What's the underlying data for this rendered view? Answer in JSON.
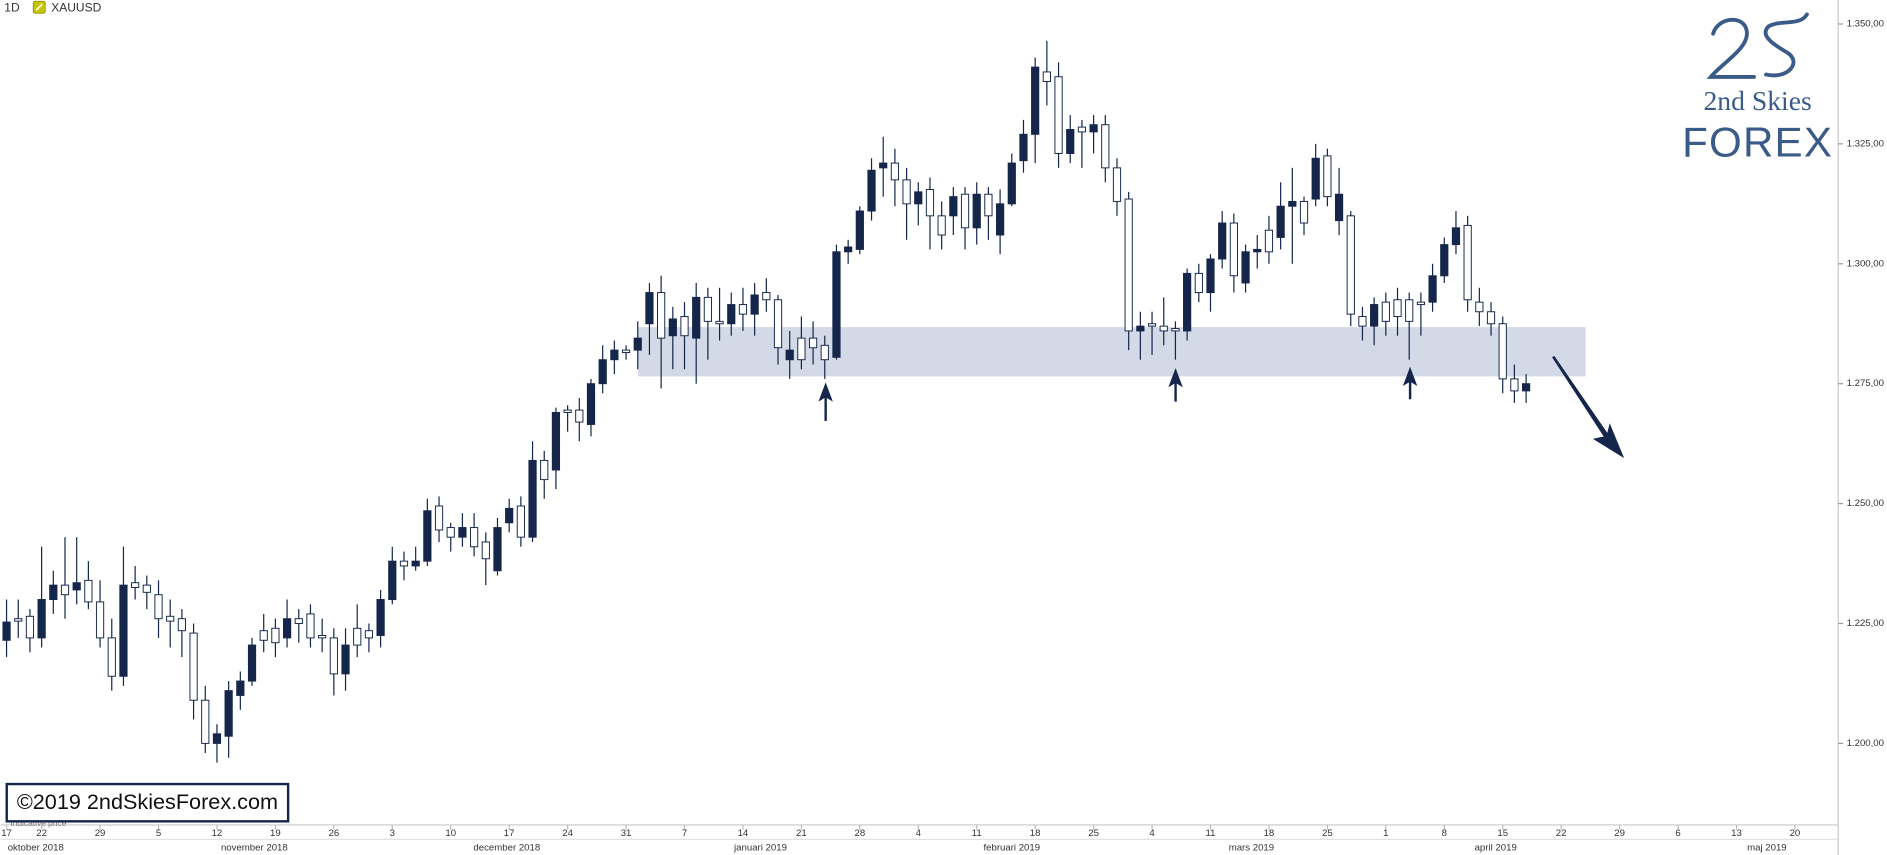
{
  "chart_data": {
    "type": "candlestick",
    "interval": "1D",
    "symbol": "XAUUSD",
    "brand_line1": "2nd Skies",
    "brand_line2": "FOREX",
    "copyright": "©2019 2ndSkiesForex.com",
    "footer_note": "Indicative price",
    "up_color": "#15264a",
    "down_color": "#ffffff",
    "ylim": [
      1183,
      1355
    ],
    "yticks": [
      {
        "value": 1200,
        "label": "1.200,00"
      },
      {
        "value": 1225,
        "label": "1.225,00"
      },
      {
        "value": 1250,
        "label": "1.250,00"
      },
      {
        "value": 1275,
        "label": "1.275,00"
      },
      {
        "value": 1300,
        "label": "1.300,00"
      },
      {
        "value": 1325,
        "label": "1.325,00"
      },
      {
        "value": 1350,
        "label": "1.350,00"
      }
    ],
    "xlim": [
      -3.5,
      153.7
    ],
    "xticks": [
      {
        "value": -3,
        "label": "17"
      },
      {
        "value": 0,
        "label": "22"
      },
      {
        "value": 5,
        "label": "29"
      },
      {
        "value": 10,
        "label": "5"
      },
      {
        "value": 15,
        "label": "12"
      },
      {
        "value": 20,
        "label": "19"
      },
      {
        "value": 25,
        "label": "26"
      },
      {
        "value": 30,
        "label": "3"
      },
      {
        "value": 35,
        "label": "10"
      },
      {
        "value": 40,
        "label": "17"
      },
      {
        "value": 45,
        "label": "24"
      },
      {
        "value": 50,
        "label": "31"
      },
      {
        "value": 55,
        "label": "7"
      },
      {
        "value": 60,
        "label": "14"
      },
      {
        "value": 65,
        "label": "21"
      },
      {
        "value": 70,
        "label": "28"
      },
      {
        "value": 75,
        "label": "4"
      },
      {
        "value": 80,
        "label": "11"
      },
      {
        "value": 85,
        "label": "18"
      },
      {
        "value": 90,
        "label": "25"
      },
      {
        "value": 95,
        "label": "4"
      },
      {
        "value": 100,
        "label": "11"
      },
      {
        "value": 105,
        "label": "18"
      },
      {
        "value": 110,
        "label": "25"
      },
      {
        "value": 115,
        "label": "1"
      },
      {
        "value": 120,
        "label": "8"
      },
      {
        "value": 125,
        "label": "15"
      },
      {
        "value": 130,
        "label": "22"
      },
      {
        "value": 135,
        "label": "29"
      },
      {
        "value": 140,
        "label": "6"
      },
      {
        "value": 145,
        "label": "13"
      },
      {
        "value": 150,
        "label": "20"
      }
    ],
    "month_labels": [
      {
        "value": -0.5,
        "label": "oktober 2018"
      },
      {
        "value": 18.2,
        "label": "november 2018"
      },
      {
        "value": 39.8,
        "label": "december 2018"
      },
      {
        "value": 61.5,
        "label": "januari 2019"
      },
      {
        "value": 83,
        "label": "februari 2019"
      },
      {
        "value": 103.5,
        "label": "mars 2019"
      },
      {
        "value": 124.4,
        "label": "april 2019"
      },
      {
        "value": 147.6,
        "label": "maj 2019"
      }
    ],
    "x": [
      -3,
      -2,
      -1,
      0,
      1,
      2,
      3,
      4,
      5,
      6,
      7,
      8,
      9,
      10,
      11,
      12,
      13,
      14,
      15,
      16,
      17,
      18,
      19,
      20,
      21,
      22,
      23,
      24,
      25,
      26,
      27,
      28,
      29,
      30,
      31,
      32,
      33,
      34,
      35,
      36,
      37,
      38,
      39,
      40,
      41,
      42,
      43,
      44,
      45,
      46,
      47,
      48,
      49,
      50,
      51,
      52,
      53,
      54,
      55,
      56,
      57,
      58,
      59,
      60,
      61,
      62,
      63,
      64,
      65,
      66,
      67,
      68,
      69,
      70,
      71,
      72,
      73,
      74,
      75,
      76,
      77,
      78,
      79,
      80,
      81,
      82,
      83,
      84,
      85,
      86,
      87,
      88,
      89,
      90,
      91,
      92,
      93,
      94,
      95,
      96,
      97,
      98,
      99,
      100,
      101,
      102,
      103,
      104,
      105,
      106,
      107,
      108,
      109,
      110,
      111,
      112,
      113,
      114,
      115,
      116,
      117,
      118,
      119,
      120,
      121,
      122,
      123,
      124,
      125,
      126,
      127
    ],
    "open": [
      1221.5,
      1226,
      1226.5,
      1222,
      1230,
      1233,
      1232,
      1234,
      1229.5,
      1222,
      1214,
      1233.5,
      1233,
      1231,
      1226.5,
      1226,
      1223,
      1209,
      1200,
      1201.5,
      1210,
      1213,
      1223.5,
      1224,
      1222,
      1226,
      1227,
      1222.5,
      1222,
      1214.5,
      1224,
      1223.5,
      1222.5,
      1230,
      1238,
      1237,
      1238,
      1249.5,
      1245,
      1243,
      1245,
      1242,
      1236,
      1246,
      1249.5,
      1243,
      1259,
      1257,
      1269.5,
      1269.5,
      1266.5,
      1275,
      1280,
      1282,
      1282,
      1287.5,
      1294,
      1285,
      1289,
      1284.5,
      1293,
      1288,
      1287.5,
      1291.5,
      1289.5,
      1294,
      1292.5,
      1280,
      1284.5,
      1284.5,
      1283,
      1280.5,
      1302.5,
      1303,
      1311,
      1320,
      1321,
      1317.5,
      1312.5,
      1315.5,
      1310,
      1310,
      1314.5,
      1307.5,
      1314.5,
      1306,
      1312.5,
      1321.5,
      1327,
      1340,
      1339,
      1323,
      1328.5,
      1327.5,
      1329,
      1320,
      1313.5,
      1286,
      1287.5,
      1287,
      1286.5,
      1286,
      1298,
      1294,
      1301,
      1308.5,
      1296,
      1302.5,
      1307,
      1305.5,
      1312,
      1313,
      1313.5,
      1322.5,
      1309,
      1310,
      1289,
      1287,
      1292,
      1292.5,
      1292.5,
      1292,
      1292,
      1297.5,
      1304,
      1308,
      1292,
      1290,
      1287.5,
      1276,
      1273.5
    ],
    "high": [
      1230,
      1230,
      1228,
      1241,
      1236,
      1243,
      1243,
      1238,
      1234,
      1226,
      1241,
      1237,
      1235,
      1234,
      1230,
      1228,
      1225,
      1212,
      1204,
      1213,
      1215,
      1222,
      1227,
      1226,
      1230,
      1228,
      1229,
      1226,
      1224,
      1224,
      1229,
      1225,
      1232,
      1241,
      1240,
      1241,
      1251,
      1251.5,
      1246,
      1248,
      1248,
      1244,
      1247,
      1251,
      1251.5,
      1263,
      1261,
      1270,
      1270.5,
      1272,
      1276,
      1283,
      1284,
      1283,
      1288,
      1296,
      1297.5,
      1291,
      1292,
      1296,
      1295,
      1295,
      1294,
      1295,
      1296,
      1297,
      1293.5,
      1286,
      1289,
      1288,
      1285,
      1304,
      1305,
      1312,
      1322,
      1326.5,
      1324,
      1320,
      1317,
      1318,
      1313,
      1316,
      1316,
      1317,
      1316,
      1315.5,
      1323,
      1330,
      1343,
      1346.5,
      1342,
      1331,
      1330,
      1331,
      1331,
      1322,
      1315,
      1290,
      1290,
      1293,
      1288,
      1299,
      1300,
      1302,
      1311,
      1310.5,
      1304,
      1306,
      1310,
      1317,
      1320,
      1314,
      1325,
      1324,
      1320,
      1311,
      1291,
      1293,
      1294,
      1295,
      1294,
      1294,
      1300,
      1305.5,
      1311,
      1310,
      1295,
      1292,
      1289,
      1279,
      1277
    ],
    "low": [
      1218,
      1222,
      1219,
      1220,
      1227,
      1226,
      1229,
      1228,
      1220,
      1211,
      1212,
      1230,
      1228,
      1222,
      1220,
      1218,
      1205,
      1198,
      1196,
      1197,
      1207,
      1212,
      1219,
      1218,
      1220,
      1221,
      1220,
      1219,
      1210,
      1211,
      1218,
      1219,
      1220,
      1229,
      1234,
      1236,
      1237,
      1242,
      1240,
      1241,
      1239,
      1233,
      1235,
      1244,
      1241,
      1242,
      1251,
      1253,
      1265,
      1263,
      1264,
      1273,
      1277,
      1280,
      1278,
      1281,
      1274,
      1278,
      1278,
      1275,
      1280,
      1284,
      1285,
      1286,
      1285,
      1290,
      1279,
      1276,
      1278,
      1279,
      1276,
      1280,
      1300,
      1302,
      1309,
      1314,
      1312,
      1305,
      1308,
      1303,
      1303,
      1306,
      1303,
      1304,
      1305,
      1302,
      1312,
      1319,
      1321,
      1333,
      1320,
      1321,
      1320,
      1323,
      1317,
      1310,
      1282,
      1280,
      1281,
      1283,
      1280,
      1284,
      1292,
      1290,
      1299,
      1294,
      1294,
      1299,
      1300,
      1303,
      1300,
      1306,
      1312,
      1312,
      1306,
      1287,
      1284,
      1283,
      1285,
      1285,
      1280,
      1285,
      1290,
      1296,
      1302,
      1290,
      1287,
      1285,
      1273,
      1271,
      1271
    ],
    "close": [
      1225.3,
      1225.5,
      1222,
      1230,
      1233,
      1231,
      1233.5,
      1229.5,
      1222,
      1214,
      1233,
      1232.5,
      1231.5,
      1226,
      1225.5,
      1223.5,
      1209,
      1200,
      1202,
      1211,
      1213,
      1220.5,
      1221.5,
      1221,
      1226,
      1225,
      1222,
      1222,
      1214.5,
      1220.5,
      1220.5,
      1222,
      1230,
      1238,
      1237,
      1238,
      1248.5,
      1244.5,
      1243,
      1245,
      1241,
      1238.5,
      1245,
      1249,
      1243,
      1259,
      1255,
      1269,
      1269,
      1267,
      1275,
      1280,
      1282,
      1281.5,
      1284.5,
      1294,
      1284.5,
      1288.5,
      1285,
      1293,
      1288,
      1287.5,
      1291.5,
      1289.5,
      1293.5,
      1292.5,
      1282.5,
      1282,
      1280,
      1282.5,
      1280,
      1302.5,
      1303.5,
      1311,
      1319.5,
      1321,
      1317.5,
      1312.5,
      1315,
      1310,
      1306,
      1314,
      1307.5,
      1314.5,
      1310,
      1312.5,
      1321,
      1327,
      1341,
      1338,
      1323,
      1328,
      1327.5,
      1329,
      1320,
      1313,
      1286,
      1287,
      1287,
      1286,
      1286,
      1298,
      1294,
      1301,
      1308.5,
      1297.5,
      1302.5,
      1303,
      1302.5,
      1312,
      1313,
      1308.5,
      1322,
      1314,
      1314.5,
      1289.5,
      1287,
      1291.5,
      1288,
      1289,
      1288,
      1291.5,
      1297.5,
      1304,
      1307.5,
      1292.5,
      1290,
      1287.5,
      1276,
      1273.5,
      1275
    ]
  }
}
